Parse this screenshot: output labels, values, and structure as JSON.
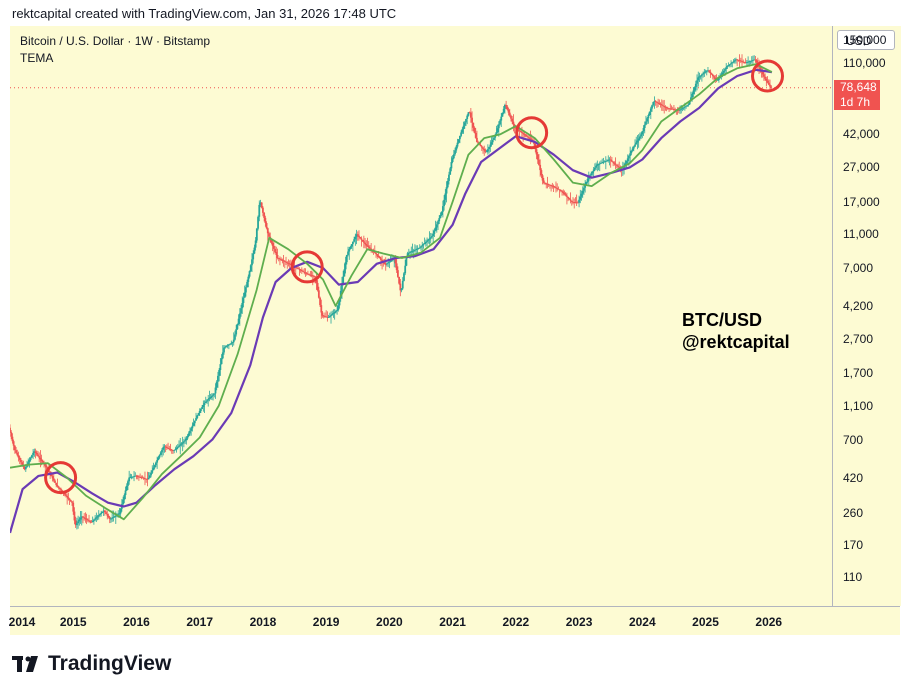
{
  "header": {
    "text": "rektcapital created with TradingView.com, Jan 31, 2026 17:48 UTC"
  },
  "legend": {
    "symbol": "Bitcoin / U.S. Dollar · 1W · Bitstamp",
    "indicator": "TEMA"
  },
  "currency_button": "USD",
  "watermark": {
    "line1": "BTC/USD",
    "line2": "@rektcapital"
  },
  "last_price": {
    "value": "78,648",
    "countdown": "1d 7h"
  },
  "branding": "TradingView",
  "colors": {
    "background": "#fdfbd3",
    "tema_slow": "#6a3ab5",
    "tema_fast": "#5fae4e",
    "candle_up": "#26a69a",
    "candle_down": "#ef5350",
    "circle": "#e53935",
    "price_line": "#f05350"
  },
  "chart_data": {
    "type": "line",
    "scale": "log",
    "ylim": [
      75,
      180000
    ],
    "xlim": [
      2014.0,
      2027.0
    ],
    "price_ticks": [
      150000,
      110000,
      78648,
      42000,
      27000,
      17000,
      11000,
      7000,
      4200,
      2700,
      1700,
      1100,
      700,
      420,
      260,
      170,
      110
    ],
    "price_tick_labels": [
      "150,000",
      "110,000",
      "78,648",
      "42,000",
      "27,000",
      "17,000",
      "11,000",
      "7,000",
      "4,200",
      "2,700",
      "1,700",
      "1,100",
      "700",
      "420",
      "260",
      "170",
      "110"
    ],
    "time_ticks": [
      "2014",
      "2015",
      "2016",
      "2017",
      "2018",
      "2019",
      "2020",
      "2021",
      "2022",
      "2023",
      "2024",
      "2025",
      "2026"
    ],
    "series": [
      {
        "key": "price",
        "x": [
          2014.0,
          2014.1,
          2014.25,
          2014.4,
          2014.6,
          2014.75,
          2014.9,
          2015.0,
          2015.05,
          2015.15,
          2015.3,
          2015.5,
          2015.6,
          2015.75,
          2015.9,
          2016.0,
          2016.2,
          2016.45,
          2016.6,
          2016.8,
          2017.0,
          2017.1,
          2017.25,
          2017.4,
          2017.55,
          2017.7,
          2017.8,
          2017.9,
          2017.97,
          2018.1,
          2018.25,
          2018.4,
          2018.55,
          2018.7,
          2018.85,
          2018.95,
          2019.05,
          2019.2,
          2019.35,
          2019.5,
          2019.65,
          2019.8,
          2019.95,
          2020.1,
          2020.2,
          2020.3,
          2020.5,
          2020.7,
          2020.85,
          2021.0,
          2021.1,
          2021.28,
          2021.4,
          2021.55,
          2021.7,
          2021.85,
          2022.0,
          2022.15,
          2022.3,
          2022.45,
          2022.6,
          2022.75,
          2022.9,
          2023.0,
          2023.15,
          2023.3,
          2023.5,
          2023.7,
          2023.85,
          2024.0,
          2024.2,
          2024.4,
          2024.6,
          2024.75,
          2024.9,
          2025.05,
          2025.2,
          2025.35,
          2025.5,
          2025.65,
          2025.8,
          2025.95,
          2026.05
        ],
        "y": [
          820,
          600,
          470,
          600,
          480,
          380,
          330,
          300,
          220,
          250,
          230,
          270,
          240,
          260,
          420,
          430,
          410,
          640,
          600,
          700,
          1000,
          1150,
          1300,
          2400,
          2600,
          4500,
          6500,
          9800,
          17500,
          11000,
          8000,
          7500,
          7000,
          6500,
          6200,
          3700,
          3600,
          4000,
          8500,
          11000,
          9500,
          8500,
          7300,
          8000,
          5000,
          8500,
          9200,
          10800,
          15000,
          29000,
          38000,
          58000,
          38000,
          33000,
          42000,
          63000,
          46000,
          42000,
          38000,
          22000,
          21000,
          19500,
          17000,
          16800,
          23000,
          28000,
          30000,
          26000,
          34000,
          42000,
          66000,
          60000,
          58000,
          63000,
          90000,
          100000,
          86000,
          104000,
          115000,
          110000,
          115000,
          90000,
          78648
        ]
      },
      {
        "key": "tema_fast",
        "x": [
          2014.0,
          2014.3,
          2014.6,
          2014.9,
          2015.2,
          2015.5,
          2015.8,
          2016.1,
          2016.4,
          2016.7,
          2017.0,
          2017.3,
          2017.6,
          2017.9,
          2018.1,
          2018.4,
          2018.7,
          2018.95,
          2019.15,
          2019.4,
          2019.65,
          2019.9,
          2020.2,
          2020.5,
          2020.8,
          2021.0,
          2021.25,
          2021.5,
          2021.75,
          2022.0,
          2022.3,
          2022.6,
          2022.9,
          2023.2,
          2023.5,
          2023.8,
          2024.0,
          2024.3,
          2024.6,
          2024.9,
          2025.2,
          2025.5,
          2025.8,
          2026.05
        ],
        "y": [
          480,
          500,
          510,
          420,
          330,
          280,
          240,
          320,
          440,
          560,
          720,
          1100,
          2200,
          5200,
          10500,
          9000,
          7400,
          6000,
          4200,
          6300,
          9000,
          8500,
          8000,
          8600,
          10500,
          17000,
          32000,
          40000,
          42000,
          47000,
          40000,
          30000,
          22000,
          21000,
          25000,
          28500,
          34000,
          50000,
          60000,
          72000,
          90000,
          102000,
          108000,
          97000
        ]
      },
      {
        "key": "tema_slow",
        "x": [
          2014.0,
          2014.2,
          2014.45,
          2014.75,
          2015.0,
          2015.3,
          2015.55,
          2015.8,
          2016.0,
          2016.3,
          2016.6,
          2016.9,
          2017.2,
          2017.5,
          2017.8,
          2018.0,
          2018.2,
          2018.45,
          2018.7,
          2018.95,
          2019.2,
          2019.5,
          2019.8,
          2020.1,
          2020.4,
          2020.7,
          2021.0,
          2021.2,
          2021.45,
          2021.7,
          2022.0,
          2022.3,
          2022.6,
          2022.9,
          2023.2,
          2023.5,
          2023.8,
          2024.0,
          2024.3,
          2024.6,
          2024.9,
          2025.2,
          2025.5,
          2025.8,
          2026.05
        ],
        "y": [
          200,
          360,
          430,
          450,
          400,
          340,
          300,
          285,
          300,
          380,
          470,
          560,
          700,
          1000,
          1900,
          3600,
          5800,
          7000,
          7600,
          7000,
          5600,
          5800,
          7400,
          8000,
          8200,
          9000,
          12500,
          19000,
          29000,
          34000,
          41000,
          38000,
          32000,
          26000,
          23500,
          25000,
          27000,
          30000,
          40000,
          50000,
          60000,
          78000,
          92000,
          100000,
          97000
        ]
      }
    ],
    "annotations": [
      {
        "type": "circle",
        "x": 2014.8,
        "y": 420
      },
      {
        "type": "circle",
        "x": 2018.7,
        "y": 7100
      },
      {
        "type": "circle",
        "x": 2022.25,
        "y": 43000
      },
      {
        "type": "circle",
        "x": 2025.98,
        "y": 92000
      }
    ]
  }
}
